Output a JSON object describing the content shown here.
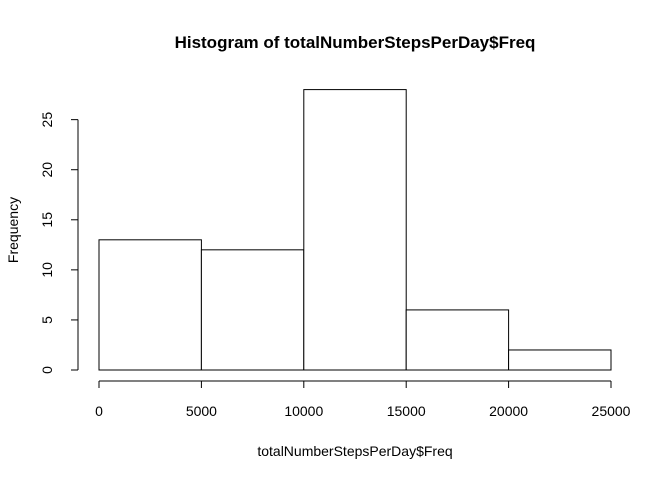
{
  "chart_data": {
    "type": "bar",
    "title": "Histogram of totalNumberStepsPerDay$Freq",
    "xlabel": "totalNumberStepsPerDay$Freq",
    "ylabel": "Frequency",
    "bins": [
      {
        "start": 0,
        "end": 5000,
        "count": 13
      },
      {
        "start": 5000,
        "end": 10000,
        "count": 12
      },
      {
        "start": 10000,
        "end": 15000,
        "count": 28
      },
      {
        "start": 15000,
        "end": 20000,
        "count": 6
      },
      {
        "start": 20000,
        "end": 25000,
        "count": 2
      }
    ],
    "xlim": [
      0,
      25000
    ],
    "ylim": [
      0,
      28
    ],
    "xticks": [
      0,
      5000,
      10000,
      15000,
      20000,
      25000
    ],
    "yticks": [
      0,
      5,
      10,
      15,
      20,
      25
    ],
    "grid": false,
    "legend": "none"
  }
}
